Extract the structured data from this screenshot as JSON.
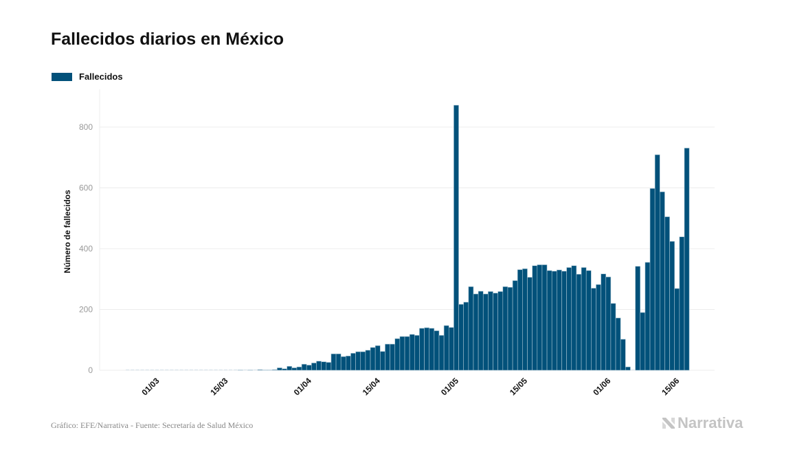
{
  "colors": {
    "bar": "#02517a",
    "bar_stroke": "#a9c4d3",
    "grid": "#ececec"
  },
  "chart_data": {
    "type": "bar",
    "title": "Fallecidos diarios en México",
    "ylabel": "Número de fallecidos",
    "xlabel": "",
    "ylim": [
      0,
      900
    ],
    "yticks": [
      0,
      200,
      400,
      600,
      800
    ],
    "xticks": [
      "01/03",
      "15/03",
      "01/04",
      "15/04",
      "01/05",
      "15/05",
      "01/06",
      "15/06"
    ],
    "grid": true,
    "legend_position": "top-left",
    "series": [
      {
        "name": "Fallecidos",
        "values": [
          0,
          0,
          0,
          0,
          0,
          0,
          0,
          0,
          0,
          0,
          0,
          0,
          0,
          0,
          0,
          0,
          0,
          0,
          0,
          0,
          0,
          0,
          0,
          1,
          0,
          1,
          0,
          2,
          1,
          1,
          2,
          8,
          5,
          13,
          8,
          11,
          20,
          17,
          24,
          30,
          28,
          26,
          54,
          54,
          45,
          47,
          56,
          61,
          61,
          66,
          75,
          81,
          62,
          86,
          86,
          104,
          111,
          111,
          118,
          115,
          138,
          140,
          138,
          130,
          115,
          147,
          141,
          872,
          217,
          224,
          275,
          251,
          260,
          251,
          259,
          254,
          259,
          275,
          273,
          295,
          331,
          334,
          306,
          344,
          347,
          347,
          328,
          326,
          330,
          326,
          338,
          344,
          316,
          338,
          328,
          270,
          282,
          317,
          307,
          220,
          172,
          102,
          11,
          0,
          342,
          190,
          355,
          598,
          709,
          587,
          505,
          424,
          269,
          439,
          731
        ]
      }
    ],
    "categories": [
      "24/02",
      "25/02",
      "26/02",
      "27/02",
      "28/02",
      "29/02",
      "01/03",
      "02/03",
      "03/03",
      "04/03",
      "05/03",
      "06/03",
      "07/03",
      "08/03",
      "09/03",
      "10/03",
      "11/03",
      "12/03",
      "13/03",
      "14/03",
      "15/03",
      "16/03",
      "17/03",
      "18/03",
      "19/03",
      "20/03",
      "21/03",
      "22/03",
      "23/03",
      "24/03",
      "25/03",
      "26/03",
      "27/03",
      "28/03",
      "29/03",
      "30/03",
      "31/03",
      "01/04",
      "02/04",
      "03/04",
      "04/04",
      "05/04",
      "06/04",
      "07/04",
      "08/04",
      "09/04",
      "10/04",
      "11/04",
      "12/04",
      "13/04",
      "14/04",
      "15/04",
      "16/04",
      "17/04",
      "18/04",
      "19/04",
      "20/04",
      "21/04",
      "22/04",
      "23/04",
      "24/04",
      "25/04",
      "26/04",
      "27/04",
      "28/04",
      "29/04",
      "30/04",
      "01/05",
      "02/05",
      "03/05",
      "04/05",
      "05/05",
      "06/05",
      "07/05",
      "08/05",
      "09/05",
      "10/05",
      "11/05",
      "12/05",
      "13/05",
      "14/05",
      "15/05",
      "16/05",
      "17/05",
      "18/05",
      "19/05",
      "20/05",
      "21/05",
      "22/05",
      "23/05",
      "24/05",
      "25/05",
      "26/05",
      "27/05",
      "28/05",
      "29/05",
      "30/05",
      "31/05",
      "01/06",
      "02/06",
      "03/06",
      "04/06",
      "05/06",
      "06/06",
      "07/06",
      "08/06",
      "09/06",
      "10/06",
      "11/06",
      "12/06",
      "13/06",
      "14/06",
      "15/06",
      "16/06",
      "17/06"
    ]
  },
  "footer": {
    "source": "Gráfico: EFE/Narrativa - Fuente: Secretaría de Salud México",
    "logo": "Narrativa"
  }
}
